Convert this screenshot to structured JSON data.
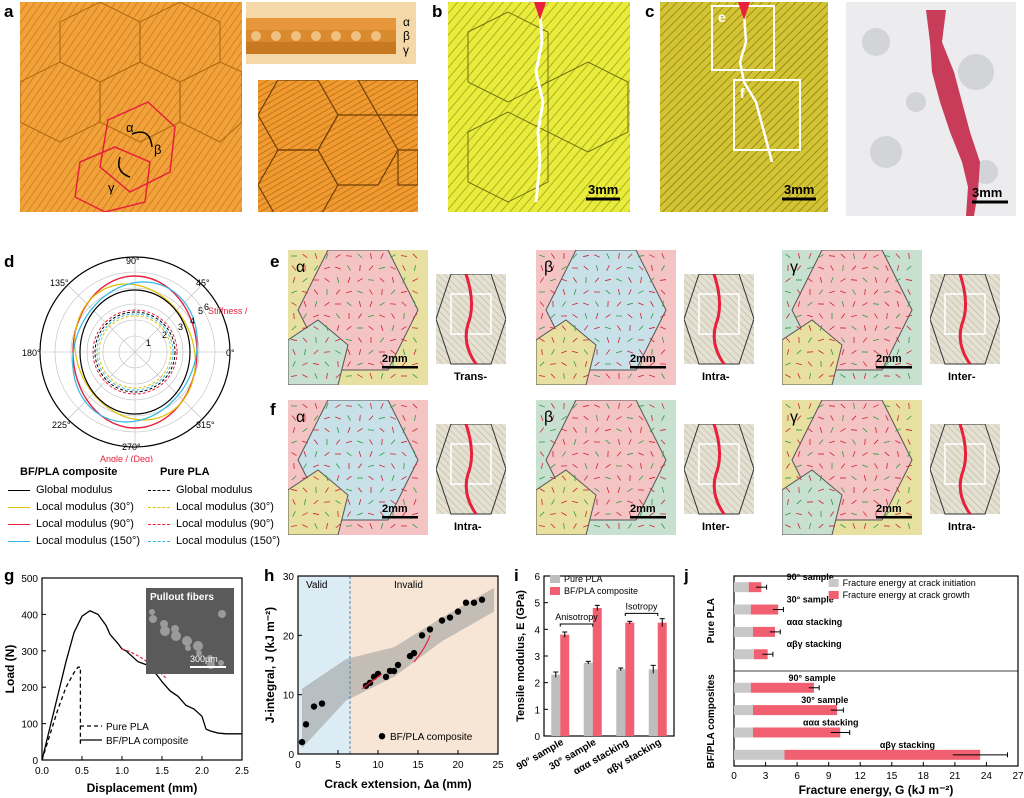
{
  "panels": {
    "a": "a",
    "b": "b",
    "c": "c",
    "d": "d",
    "e": "e",
    "f": "f",
    "g": "g",
    "h": "h",
    "i": "i",
    "j": "j"
  },
  "panel_a": {
    "layers": [
      "α",
      "β",
      "γ"
    ],
    "angle_labels": [
      "α",
      "β",
      "γ"
    ]
  },
  "panel_b": {
    "scale": "3mm"
  },
  "panel_c": {
    "scale": "3mm",
    "boxes": [
      "e",
      "f"
    ]
  },
  "panel_c2": {
    "scale": "3mm"
  },
  "panel_d": {
    "angles": [
      "90°",
      "45°",
      "0°",
      "315°",
      "270°",
      "225°",
      "180°",
      "135°"
    ],
    "rings": [
      "1",
      "2",
      "3",
      "4",
      "5",
      "6"
    ],
    "radial_label": "Stiffness / (GPa)",
    "angle_label": "Angle / (Deg)"
  },
  "legend_d": {
    "left_title": "BF/PLA composite",
    "right_title": "Pure PLA",
    "left_items": [
      {
        "label": "Global modulus",
        "color": "#000000"
      },
      {
        "label": "Local modulus (30°)",
        "color": "#e0c000"
      },
      {
        "label": "Local modulus (90°)",
        "color": "#e8203c"
      },
      {
        "label": "Local modulus (150°)",
        "color": "#30b8e8"
      }
    ],
    "right_items": [
      {
        "label": "Global modulus",
        "color": "#000000"
      },
      {
        "label": "Local modulus (30°)",
        "color": "#e0c000"
      },
      {
        "label": "Local modulus (90°)",
        "color": "#e8203c"
      },
      {
        "label": "Local modulus (150°)",
        "color": "#30b8e8"
      }
    ]
  },
  "panel_e": {
    "greek": [
      "α",
      "β",
      "γ"
    ],
    "scales": [
      "2mm",
      "2mm",
      "2mm"
    ],
    "modes": [
      "Trans-",
      "Intra-",
      "Inter-"
    ]
  },
  "panel_f": {
    "greek": [
      "α",
      "β",
      "γ"
    ],
    "scales": [
      "2mm",
      "2mm",
      "2mm"
    ],
    "modes": [
      "Intra-",
      "Inter-",
      "Intra-"
    ]
  },
  "panel_g": {
    "inset_label": "Pullout fibers",
    "inset_scale": "300μm",
    "xlabel": "Displacement (mm)",
    "ylabel": "Load (N)",
    "legend": [
      "Pure PLA",
      "BF/PLA composite"
    ]
  },
  "panel_h": {
    "regions": [
      "Valid",
      "Invalid"
    ],
    "xlabel": "Crack extension, Δa (mm)",
    "ylabel": "J-integral, J (kJ m⁻²)",
    "legend": "BF/PLA composite"
  },
  "panel_i": {
    "legend": [
      "Pure PLA",
      "BF/PLA composite"
    ],
    "brackets": [
      "Anisotropy",
      "Isotropy"
    ],
    "ylabel": "Tensile modulus, E (GPa)"
  },
  "panel_j": {
    "legend": [
      "Fracture energy at crack initiation",
      "Fracture energy at crack growth"
    ],
    "groups": [
      "Pure PLA",
      "BF/PLA composites"
    ],
    "xlabel": "Fracture energy, G (kJ m⁻²)"
  },
  "chart_data": [
    {
      "type": "line",
      "xlabel": "Displacement (mm)",
      "ylabel": "Load (N)",
      "xlim": [
        0,
        2.5
      ],
      "ylim": [
        0,
        500
      ],
      "xticks": [
        0.0,
        0.5,
        1.0,
        1.5,
        2.0,
        2.5
      ],
      "yticks": [
        0,
        100,
        200,
        300,
        400,
        500
      ],
      "series": [
        {
          "name": "Pure PLA",
          "dash": true,
          "x": [
            0,
            0.1,
            0.2,
            0.3,
            0.4,
            0.45,
            0.48,
            0.48
          ],
          "y": [
            0,
            70,
            140,
            200,
            240,
            255,
            255,
            40
          ]
        },
        {
          "name": "BF/PLA composite",
          "dash": false,
          "x": [
            0,
            0.1,
            0.2,
            0.3,
            0.4,
            0.5,
            0.6,
            0.7,
            0.8,
            0.85,
            0.95,
            1.0,
            1.05,
            1.1,
            1.2,
            1.3,
            1.35,
            1.45,
            1.5,
            1.6,
            1.7,
            1.8,
            1.9,
            2.0,
            2.05,
            2.1,
            2.2,
            2.3,
            2.5
          ],
          "y": [
            0,
            90,
            180,
            270,
            350,
            395,
            410,
            400,
            370,
            345,
            320,
            305,
            300,
            290,
            270,
            262,
            255,
            230,
            215,
            190,
            175,
            150,
            140,
            120,
            85,
            80,
            74,
            72,
            72
          ]
        }
      ]
    },
    {
      "type": "scatter",
      "xlabel": "Crack extension, Δa (mm)",
      "ylabel": "J-integral, J (kJ m⁻²)",
      "xlim": [
        0,
        25
      ],
      "ylim": [
        0,
        30
      ],
      "xticks": [
        0,
        5,
        10,
        15,
        20,
        25
      ],
      "yticks": [
        0,
        10,
        20,
        30
      ],
      "valid_limit": 6.5,
      "series": [
        {
          "name": "BF/PLA composite",
          "x": [
            0.5,
            1,
            2,
            3,
            8.5,
            9,
            9.5,
            10,
            11,
            11.5,
            12,
            12.5,
            14,
            14.5,
            15.5,
            16.5,
            18,
            19,
            20,
            21,
            22,
            23
          ],
          "y": [
            2,
            5,
            8,
            8.5,
            11.5,
            12,
            13,
            13.5,
            13,
            14,
            14,
            15,
            16.5,
            17,
            20,
            21,
            22.5,
            23,
            24,
            25.5,
            25.5,
            26
          ]
        }
      ]
    },
    {
      "type": "bar",
      "ylabel": "Tensile modulus, E (GPa)",
      "ylim": [
        0,
        6
      ],
      "yticks": [
        0,
        1,
        2,
        3,
        4,
        5,
        6
      ],
      "categories": [
        "90° sample",
        "30° sample",
        "ααα stacking",
        "αβγ stacking"
      ],
      "series": [
        {
          "name": "Pure PLA",
          "color": "#bdbdbd",
          "values": [
            2.3,
            2.75,
            2.5,
            2.5
          ],
          "errors": [
            0.1,
            0.05,
            0.05,
            0.15
          ]
        },
        {
          "name": "BF/PLA composite",
          "color": "#f06070",
          "values": [
            3.8,
            4.8,
            4.25,
            4.25
          ],
          "errors": [
            0.1,
            0.1,
            0.05,
            0.15
          ]
        }
      ]
    },
    {
      "type": "bar",
      "orientation": "horizontal",
      "xlabel": "Fracture energy, G (kJ m⁻²)",
      "xlim": [
        0,
        27
      ],
      "xticks": [
        0,
        3,
        6,
        9,
        12,
        15,
        18,
        21,
        24,
        27
      ],
      "categories": [
        "90° sample",
        "30° sample",
        "ααα stacking",
        "αβγ stacking",
        "90° sample",
        "30° sample",
        "ααα stacking",
        "αβγ stacking"
      ],
      "series": [
        {
          "name": "Fracture energy at crack initiation",
          "color": "#c8c8c8",
          "values": [
            1.4,
            1.6,
            1.8,
            1.9,
            1.6,
            1.8,
            1.8,
            4.8
          ]
        },
        {
          "name": "Fracture energy at crack growth",
          "color": "#f06070",
          "values": [
            2.6,
            4.2,
            3.9,
            3.2,
            7.6,
            9.8,
            10.1,
            23.4
          ],
          "errors": [
            0.5,
            0.5,
            0.5,
            0.5,
            0.5,
            0.6,
            0.9,
            2.6
          ]
        }
      ]
    }
  ]
}
